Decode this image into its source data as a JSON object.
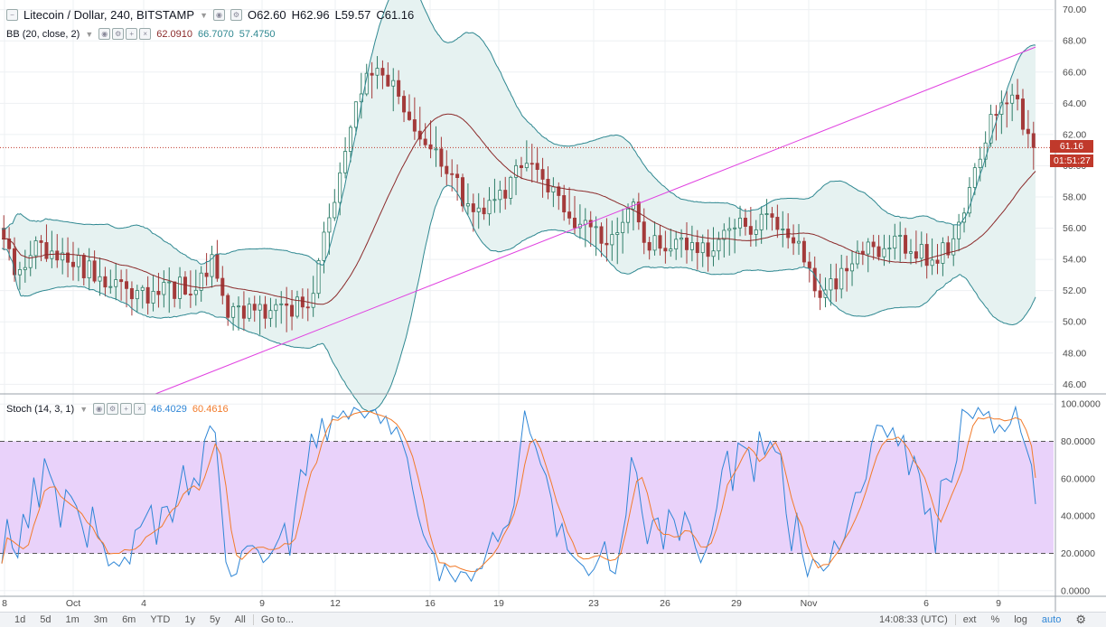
{
  "symbol": {
    "name": "Litecoin / Dollar, 240, BITSTAMP",
    "O": "O62.60",
    "H": "H62.96",
    "L": "L59.57",
    "C": "C61.16"
  },
  "bb": {
    "label": "BB (20, close, 2)",
    "v1": "62.0910",
    "v2": "66.7070",
    "v3": "57.4750"
  },
  "stoch": {
    "label": "Stoch (14, 3, 1)",
    "v1": "46.4029",
    "v2": "60.4616"
  },
  "price_tag": {
    "price": "61.16",
    "countdown": "01:51:27"
  },
  "colors": {
    "up": "#2d7c67",
    "down": "#a43a3a",
    "bb_fill": "#e6f2f1",
    "bb_band": "#2f8891",
    "ma": "#8b2a2a",
    "trend": "#e040e0",
    "k": "#2f86d6",
    "d": "#f27b2b",
    "stoch_fill": "#e9d2fa"
  },
  "chart_data": [
    {
      "type": "candlestick",
      "title": "Litecoin / Dollar, 240, BITSTAMP",
      "ylim": [
        45.5,
        70.5
      ],
      "y_ticks": [
        "70.00",
        "68.00",
        "66.00",
        "64.00",
        "62.00",
        "60.00",
        "58.00",
        "56.00",
        "54.00",
        "52.00",
        "50.00",
        "48.00",
        "46.00"
      ],
      "x_ticks": [
        "8",
        "Oct",
        "4",
        "9",
        "12",
        "16",
        "19",
        "23",
        "26",
        "29",
        "Nov",
        "6",
        "9"
      ],
      "last": 61.16,
      "notes": "close path approximated from image; Bollinger Bands (20,2) overlay and rising trend line"
    },
    {
      "type": "line",
      "title": "Stoch (14, 3, 1)",
      "ylim": [
        -3,
        103
      ],
      "y_ticks": [
        "100.0000",
        "80.0000",
        "60.0000",
        "40.0000",
        "20.0000",
        "0.0000"
      ],
      "band": [
        20,
        80
      ],
      "series": [
        {
          "name": "%K",
          "last": 46.4029
        },
        {
          "name": "%D",
          "last": 60.4616
        }
      ]
    }
  ],
  "bottom_bar": {
    "ranges": [
      "1d",
      "5d",
      "1m",
      "3m",
      "6m",
      "YTD",
      "1y",
      "5y",
      "All"
    ],
    "goto": "Go to...",
    "time": "14:08:33 (UTC)",
    "opts": [
      "ext",
      "%",
      "log",
      "auto"
    ]
  }
}
